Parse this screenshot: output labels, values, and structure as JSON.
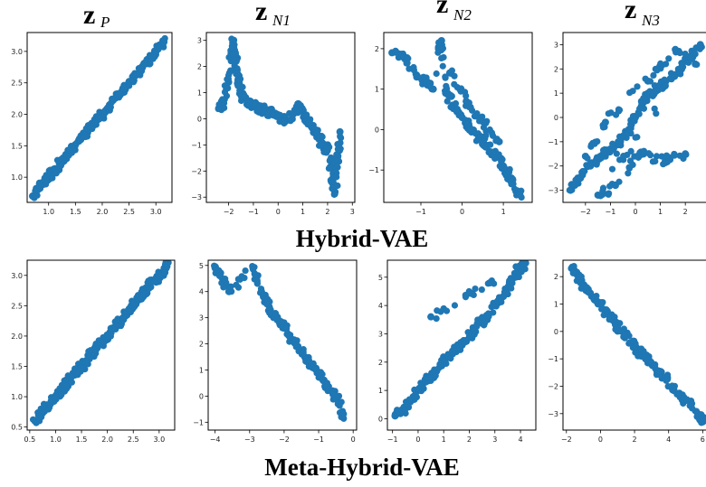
{
  "figure": {
    "column_titles": [
      {
        "main": "z",
        "sub": "P"
      },
      {
        "main": "z",
        "sub": "N1"
      },
      {
        "main": "z",
        "sub": "N2"
      },
      {
        "main": "z",
        "sub": "N3"
      }
    ],
    "row_titles": [
      "Hybrid-VAE",
      "Meta-Hybrid-VAE"
    ],
    "colors": {
      "points": "#1f77b4",
      "axes": "#000000",
      "text": "#000000"
    }
  },
  "chart_data": [
    {
      "type": "scatter",
      "row": "Hybrid-VAE",
      "column": "z_P",
      "xlim": [
        0.6,
        3.3
      ],
      "ylim": [
        0.6,
        3.3
      ],
      "xticks": [
        1.0,
        1.5,
        2.0,
        2.5,
        3.0
      ],
      "yticks": [
        1.0,
        1.5,
        2.0,
        2.5,
        3.0
      ],
      "xtick_labels": [
        "1.0",
        "1.5",
        "2.0",
        "2.5",
        "3.0"
      ],
      "ytick_labels": [
        "1.0",
        "1.5",
        "2.0",
        "2.5",
        "3.0"
      ],
      "x": [
        0.7,
        0.8,
        0.9,
        1.0,
        1.1,
        1.2,
        1.3,
        1.4,
        1.5,
        1.6,
        1.7,
        1.8,
        1.9,
        2.0,
        2.1,
        2.2,
        2.3,
        2.4,
        2.5,
        2.6,
        2.7,
        2.8,
        2.9,
        3.0,
        3.1,
        3.15
      ],
      "y": [
        0.7,
        0.8,
        0.92,
        1.0,
        1.1,
        1.22,
        1.3,
        1.4,
        1.52,
        1.6,
        1.7,
        1.82,
        1.9,
        2.0,
        2.1,
        2.22,
        2.3,
        2.4,
        2.52,
        2.6,
        2.7,
        2.8,
        2.9,
        3.0,
        3.1,
        3.15
      ]
    },
    {
      "type": "scatter",
      "row": "Hybrid-VAE",
      "column": "z_N1",
      "xlim": [
        -2.9,
        3.1
      ],
      "ylim": [
        -3.2,
        3.3
      ],
      "xticks": [
        -2,
        -1,
        0,
        1,
        2,
        3
      ],
      "yticks": [
        -3,
        -2,
        -1,
        0,
        1,
        2,
        3
      ],
      "xtick_labels": [
        "−2",
        "−1",
        "0",
        "1",
        "2",
        "3"
      ],
      "ytick_labels": [
        "−3",
        "−2",
        "−1",
        "0",
        "1",
        "2",
        "3"
      ],
      "x": [
        -2.4,
        -2.2,
        -2.0,
        -1.9,
        -1.8,
        -1.7,
        -1.6,
        -1.5,
        -1.4,
        -1.2,
        -1.0,
        -0.8,
        -0.5,
        -0.2,
        0.0,
        0.3,
        0.6,
        0.9,
        1.1,
        1.3,
        1.5,
        1.7,
        1.9,
        2.0,
        2.1,
        2.2,
        2.3,
        2.4,
        2.5
      ],
      "y": [
        0.4,
        0.6,
        1.4,
        2.5,
        3.0,
        2.2,
        1.5,
        1.0,
        0.8,
        0.6,
        0.5,
        0.4,
        0.3,
        0.2,
        0.1,
        -0.1,
        0.2,
        0.5,
        0.0,
        -0.2,
        -0.5,
        -0.8,
        -1.2,
        -1.0,
        -1.6,
        -2.4,
        -2.8,
        -1.5,
        -0.5
      ]
    },
    {
      "type": "scatter",
      "row": "Hybrid-VAE",
      "column": "z_N2",
      "xlim": [
        -1.9,
        1.7
      ],
      "ylim": [
        -1.8,
        2.4
      ],
      "xticks": [
        -1,
        0,
        1
      ],
      "yticks": [
        -1,
        0,
        1,
        2
      ],
      "xtick_labels": [
        "−1",
        "0",
        "1"
      ],
      "ytick_labels": [
        "−1",
        "0",
        "1",
        "2"
      ],
      "x": [
        -1.7,
        -1.4,
        -1.1,
        -0.9,
        -0.7,
        -0.5,
        -0.4,
        -0.2,
        0.0,
        0.2,
        0.4,
        0.6,
        0.8,
        1.0,
        1.2,
        1.4,
        -0.3,
        0.1,
        0.5,
        0.9
      ],
      "y": [
        1.9,
        1.8,
        1.3,
        1.2,
        1.0,
        2.2,
        0.9,
        0.6,
        0.3,
        0.0,
        -0.2,
        -0.4,
        -0.6,
        -0.9,
        -1.2,
        -1.6,
        1.4,
        0.7,
        0.2,
        -0.3
      ]
    },
    {
      "type": "scatter",
      "row": "Hybrid-VAE",
      "column": "z_N3",
      "xlim": [
        -2.9,
        2.9
      ],
      "ylim": [
        -3.5,
        3.5
      ],
      "xticks": [
        -2,
        -1,
        0,
        1,
        2
      ],
      "yticks": [
        -3,
        -2,
        -1,
        0,
        1,
        2,
        3
      ],
      "xtick_labels": [
        "−2",
        "−1",
        "0",
        "1",
        "2"
      ],
      "ytick_labels": [
        "−3",
        "−2",
        "−1",
        "0",
        "1",
        "2",
        "3"
      ],
      "x": [
        -2.6,
        -2.2,
        -1.8,
        -1.4,
        -1.0,
        -0.6,
        -0.3,
        0.0,
        0.3,
        0.6,
        1.0,
        1.4,
        1.8,
        2.2,
        2.6,
        -1.5,
        -0.8,
        0.2,
        1.2,
        2.0,
        -2.0,
        -1.2,
        0.5,
        1.6,
        2.4
      ],
      "y": [
        -3.0,
        -2.5,
        -2.0,
        -1.6,
        -1.3,
        -1.0,
        -0.6,
        0.0,
        0.6,
        1.0,
        1.3,
        1.6,
        2.0,
        2.5,
        3.0,
        -3.2,
        -2.8,
        -1.5,
        -1.8,
        -1.5,
        -1.6,
        -0.2,
        1.5,
        2.8,
        2.2
      ]
    },
    {
      "type": "scatter",
      "row": "Meta-Hybrid-VAE",
      "column": "z_P",
      "xlim": [
        0.45,
        3.3
      ],
      "ylim": [
        0.45,
        3.25
      ],
      "xticks": [
        0.5,
        1.0,
        1.5,
        2.0,
        2.5,
        3.0
      ],
      "yticks": [
        0.5,
        1.0,
        1.5,
        2.0,
        2.5,
        3.0
      ],
      "xtick_labels": [
        "0.5",
        "1.0",
        "1.5",
        "2.0",
        "2.5",
        "3.0"
      ],
      "ytick_labels": [
        "0.5",
        "1.0",
        "1.5",
        "2.0",
        "2.5",
        "3.0"
      ],
      "x": [
        0.6,
        0.7,
        0.8,
        0.9,
        1.0,
        1.1,
        1.2,
        1.3,
        1.4,
        1.5,
        1.6,
        1.7,
        1.8,
        1.9,
        2.0,
        2.1,
        2.2,
        2.3,
        2.4,
        2.5,
        2.6,
        2.7,
        2.8,
        2.9,
        3.0,
        3.1,
        3.15
      ],
      "y": [
        0.6,
        0.7,
        0.82,
        0.88,
        1.0,
        1.08,
        1.2,
        1.32,
        1.4,
        1.5,
        1.58,
        1.72,
        1.8,
        1.88,
        2.0,
        2.12,
        2.2,
        2.3,
        2.42,
        2.5,
        2.6,
        2.7,
        2.82,
        2.9,
        3.0,
        3.08,
        3.15
      ]
    },
    {
      "type": "scatter",
      "row": "Meta-Hybrid-VAE",
      "column": "z_N1",
      "xlim": [
        -4.2,
        0.1
      ],
      "ylim": [
        -1.3,
        5.2
      ],
      "xticks": [
        -4,
        -3,
        -2,
        -1,
        0
      ],
      "yticks": [
        -1,
        0,
        1,
        2,
        3,
        4,
        5
      ],
      "xtick_labels": [
        "−4",
        "−3",
        "−2",
        "−1",
        "0"
      ],
      "ytick_labels": [
        "−1",
        "0",
        "1",
        "2",
        "3",
        "4",
        "5"
      ],
      "x": [
        -4.0,
        -3.9,
        -3.6,
        -2.9,
        -2.8,
        -2.6,
        -2.4,
        -2.2,
        -2.0,
        -1.8,
        -1.6,
        -1.4,
        -1.2,
        -1.0,
        -0.8,
        -0.6,
        -0.4,
        -0.3
      ],
      "y": [
        4.9,
        4.8,
        4.0,
        4.9,
        4.5,
        3.8,
        3.3,
        3.0,
        2.6,
        2.2,
        1.9,
        1.5,
        1.2,
        0.9,
        0.5,
        0.2,
        -0.3,
        -0.8
      ]
    },
    {
      "type": "scatter",
      "row": "Meta-Hybrid-VAE",
      "column": "z_N2",
      "xlim": [
        -1.2,
        4.6
      ],
      "ylim": [
        -0.4,
        5.6
      ],
      "xticks": [
        -1,
        0,
        1,
        2,
        3,
        4
      ],
      "yticks": [
        0,
        1,
        2,
        3,
        4,
        5
      ],
      "xtick_labels": [
        "−1",
        "0",
        "1",
        "2",
        "3",
        "4"
      ],
      "ytick_labels": [
        "0",
        "1",
        "2",
        "3",
        "4",
        "5"
      ],
      "x": [
        -0.9,
        -0.6,
        -0.3,
        0.0,
        0.3,
        0.6,
        0.9,
        1.2,
        1.5,
        1.8,
        2.1,
        2.4,
        2.7,
        3.0,
        3.3,
        3.6,
        3.9,
        4.2,
        0.5,
        2.8
      ],
      "y": [
        0.1,
        0.3,
        0.6,
        1.0,
        1.3,
        1.6,
        1.9,
        2.2,
        2.5,
        2.7,
        3.0,
        3.4,
        3.5,
        4.0,
        4.3,
        4.7,
        5.2,
        5.5,
        3.6,
        4.8
      ]
    },
    {
      "type": "scatter",
      "row": "Meta-Hybrid-VAE",
      "column": "z_N3",
      "xlim": [
        -2.2,
        6.3
      ],
      "ylim": [
        -3.6,
        2.6
      ],
      "xticks": [
        -2,
        0,
        2,
        4,
        6
      ],
      "yticks": [
        -3,
        -2,
        -1,
        0,
        1,
        2
      ],
      "xtick_labels": [
        "−2",
        "0",
        "2",
        "4",
        "6"
      ],
      "ytick_labels": [
        "−3",
        "−2",
        "−1",
        "0",
        "1",
        "2"
      ],
      "x": [
        -1.7,
        -1.3,
        -1.0,
        -0.6,
        -0.2,
        0.2,
        0.6,
        1.0,
        1.4,
        1.8,
        2.2,
        2.6,
        3.0,
        3.4,
        3.8,
        4.3,
        4.8,
        5.3,
        5.8,
        6.0
      ],
      "y": [
        2.3,
        2.0,
        1.7,
        1.4,
        1.1,
        0.8,
        0.5,
        0.2,
        -0.1,
        -0.4,
        -0.7,
        -0.9,
        -1.2,
        -1.5,
        -1.7,
        -2.1,
        -2.5,
        -2.7,
        -3.1,
        -3.3
      ]
    }
  ]
}
